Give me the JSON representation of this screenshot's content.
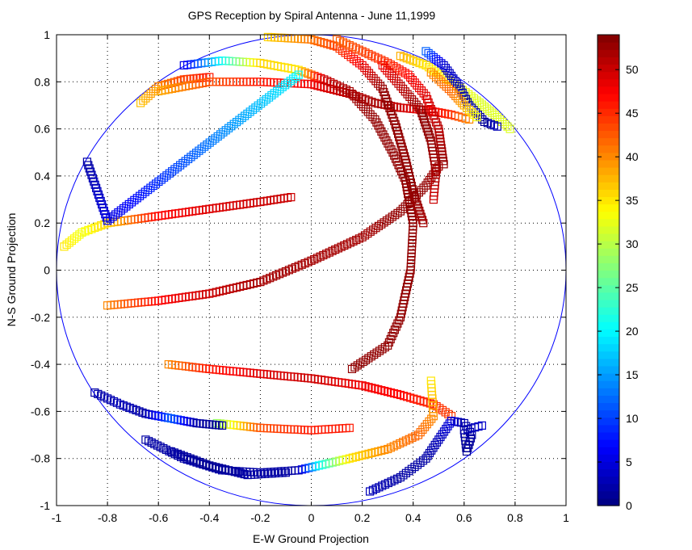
{
  "chart_data": {
    "type": "scatter",
    "title": "GPS Reception by Spiral Antenna - June 11,1999",
    "xlabel": "E-W Ground Projection",
    "ylabel": "N-S Ground Projection",
    "xlim": [
      -1,
      1
    ],
    "ylim": [
      -1,
      1
    ],
    "grid": true,
    "marker": "square",
    "x_ticks": [
      "-1",
      "-0.8",
      "-0.6",
      "-0.4",
      "-0.2",
      "0",
      "0.2",
      "0.4",
      "0.6",
      "0.8",
      "1"
    ],
    "y_ticks": [
      "1",
      "0.8",
      "0.6",
      "0.4",
      "0.2",
      "0",
      "-0.2",
      "-0.4",
      "-0.6",
      "-0.8",
      "-1"
    ],
    "horizon_circle": {
      "radius": 1,
      "color": "#0000ff"
    },
    "colorbar": {
      "colormap": "jet",
      "range": [
        0,
        54
      ],
      "ticks": [
        "0",
        "5",
        "10",
        "15",
        "20",
        "25",
        "30",
        "35",
        "40",
        "45",
        "50"
      ]
    },
    "tracks": [
      {
        "points": [
          [
            -0.97,
            0.1,
            35
          ],
          [
            -0.9,
            0.16,
            33
          ],
          [
            -0.8,
            0.2,
            36
          ],
          [
            -0.6,
            0.23,
            47
          ],
          [
            -0.4,
            0.26,
            49
          ],
          [
            -0.2,
            0.29,
            50
          ],
          [
            -0.08,
            0.31,
            50
          ]
        ]
      },
      {
        "points": [
          [
            -0.8,
            -0.15,
            40
          ],
          [
            -0.6,
            -0.13,
            47
          ],
          [
            -0.4,
            -0.1,
            50
          ],
          [
            -0.2,
            -0.05,
            52
          ],
          [
            0,
            0.04,
            52
          ],
          [
            0.2,
            0.14,
            52
          ],
          [
            0.35,
            0.25,
            53
          ],
          [
            0.45,
            0.36,
            53
          ],
          [
            0.5,
            0.44,
            52
          ]
        ]
      },
      {
        "points": [
          [
            -0.67,
            0.71,
            37
          ],
          [
            -0.6,
            0.78,
            40
          ],
          [
            -0.5,
            0.81,
            44
          ],
          [
            -0.4,
            0.82,
            46
          ]
        ]
      },
      {
        "points": [
          [
            -0.6,
            0.76,
            38
          ],
          [
            -0.4,
            0.8,
            43
          ],
          [
            -0.2,
            0.8,
            46
          ],
          [
            0,
            0.79,
            48
          ],
          [
            0.15,
            0.75,
            51
          ],
          [
            0.25,
            0.71,
            52
          ],
          [
            0.35,
            0.69,
            50
          ],
          [
            0.45,
            0.68,
            48
          ],
          [
            0.55,
            0.66,
            45
          ],
          [
            0.62,
            0.64,
            40
          ]
        ]
      },
      {
        "points": [
          [
            -0.5,
            0.87,
            5
          ],
          [
            -0.35,
            0.89,
            20
          ],
          [
            -0.2,
            0.88,
            36
          ],
          [
            -0.05,
            0.85,
            35
          ],
          [
            0.05,
            0.81,
            50
          ],
          [
            0.15,
            0.76,
            52
          ],
          [
            0.25,
            0.64,
            53
          ],
          [
            0.32,
            0.5,
            53
          ],
          [
            0.37,
            0.38,
            53
          ],
          [
            0.4,
            0.2,
            53
          ],
          [
            0.39,
            0.0,
            53
          ],
          [
            0.35,
            -0.2,
            53
          ],
          [
            0.3,
            -0.32,
            53
          ],
          [
            0.16,
            -0.42,
            53
          ]
        ]
      },
      {
        "points": [
          [
            -0.17,
            0.99,
            36
          ],
          [
            0,
            0.98,
            41
          ],
          [
            0.1,
            0.95,
            44
          ],
          [
            0.2,
            0.87,
            48
          ],
          [
            0.28,
            0.77,
            53
          ],
          [
            0.33,
            0.62,
            53
          ],
          [
            0.37,
            0.47,
            53
          ],
          [
            0.4,
            0.33,
            53
          ],
          [
            0.44,
            0.2,
            52
          ]
        ]
      },
      {
        "points": [
          [
            0.1,
            0.98,
            42
          ],
          [
            0.2,
            0.93,
            44
          ],
          [
            0.3,
            0.88,
            45
          ],
          [
            0.38,
            0.83,
            47
          ],
          [
            0.45,
            0.74,
            49
          ],
          [
            0.5,
            0.6,
            51
          ],
          [
            0.52,
            0.45,
            53
          ]
        ]
      },
      {
        "points": [
          [
            0.28,
            0.87,
            48
          ],
          [
            0.36,
            0.77,
            51
          ],
          [
            0.43,
            0.68,
            53
          ],
          [
            0.47,
            0.55,
            53
          ],
          [
            0.49,
            0.42,
            52
          ],
          [
            0.48,
            0.3,
            50
          ]
        ]
      },
      {
        "points": [
          [
            0.35,
            0.91,
            38
          ],
          [
            0.45,
            0.87,
            35
          ],
          [
            0.55,
            0.8,
            34
          ],
          [
            0.65,
            0.72,
            32
          ],
          [
            0.72,
            0.66,
            32
          ],
          [
            0.78,
            0.6,
            32
          ]
        ]
      },
      {
        "points": [
          [
            0.45,
            0.93,
            12
          ],
          [
            0.52,
            0.87,
            4
          ],
          [
            0.58,
            0.78,
            3
          ],
          [
            0.62,
            0.7,
            2
          ],
          [
            0.68,
            0.63,
            1
          ],
          [
            0.73,
            0.61,
            3
          ]
        ]
      },
      {
        "points": [
          [
            0.47,
            0.84,
            40
          ],
          [
            0.55,
            0.76,
            42
          ],
          [
            0.6,
            0.7,
            38
          ],
          [
            0.65,
            0.65,
            33
          ]
        ]
      },
      {
        "points": [
          [
            -0.56,
            -0.4,
            40
          ],
          [
            -0.4,
            -0.42,
            46
          ],
          [
            -0.2,
            -0.44,
            49
          ],
          [
            0,
            -0.46,
            50
          ],
          [
            0.2,
            -0.49,
            48
          ],
          [
            0.35,
            -0.53,
            47
          ],
          [
            0.48,
            -0.57,
            45
          ],
          [
            0.55,
            -0.62,
            44
          ]
        ]
      },
      {
        "points": [
          [
            -0.37,
            -0.65,
            28
          ],
          [
            -0.2,
            -0.67,
            43
          ],
          [
            0,
            -0.68,
            46
          ],
          [
            0.15,
            -0.67,
            46
          ]
        ]
      },
      {
        "points": [
          [
            -0.85,
            -0.52,
            2
          ],
          [
            -0.75,
            -0.57,
            3
          ],
          [
            -0.65,
            -0.61,
            2
          ],
          [
            -0.55,
            -0.63,
            12
          ],
          [
            -0.45,
            -0.65,
            2
          ],
          [
            -0.35,
            -0.66,
            1
          ]
        ]
      },
      {
        "points": [
          [
            -0.65,
            -0.72,
            2
          ],
          [
            -0.5,
            -0.8,
            2
          ],
          [
            -0.35,
            -0.85,
            2
          ],
          [
            -0.2,
            -0.86,
            2
          ],
          [
            -0.05,
            -0.85,
            2
          ],
          [
            0.03,
            -0.83,
            20
          ],
          [
            0.15,
            -0.8,
            35
          ],
          [
            0.3,
            -0.76,
            40
          ],
          [
            0.42,
            -0.7,
            42
          ],
          [
            0.48,
            -0.62,
            40
          ],
          [
            0.47,
            -0.47,
            35
          ]
        ]
      },
      {
        "points": [
          [
            -0.55,
            -0.77,
            2
          ],
          [
            -0.4,
            -0.83,
            1
          ],
          [
            -0.25,
            -0.87,
            2
          ],
          [
            -0.1,
            -0.86,
            2
          ]
        ]
      },
      {
        "points": [
          [
            0.23,
            -0.94,
            3
          ],
          [
            0.35,
            -0.88,
            2
          ],
          [
            0.45,
            -0.8,
            2
          ],
          [
            0.5,
            -0.72,
            3
          ],
          [
            0.55,
            -0.64,
            5
          ],
          [
            0.6,
            -0.65,
            2
          ],
          [
            0.63,
            -0.7,
            2
          ],
          [
            0.61,
            -0.77,
            1
          ],
          [
            0.6,
            -0.68,
            2
          ],
          [
            0.67,
            -0.66,
            4
          ]
        ]
      },
      {
        "points": [
          [
            -0.88,
            0.46,
            2
          ],
          [
            -0.8,
            0.21,
            5
          ],
          [
            -0.05,
            0.83,
            20
          ]
        ]
      }
    ]
  }
}
